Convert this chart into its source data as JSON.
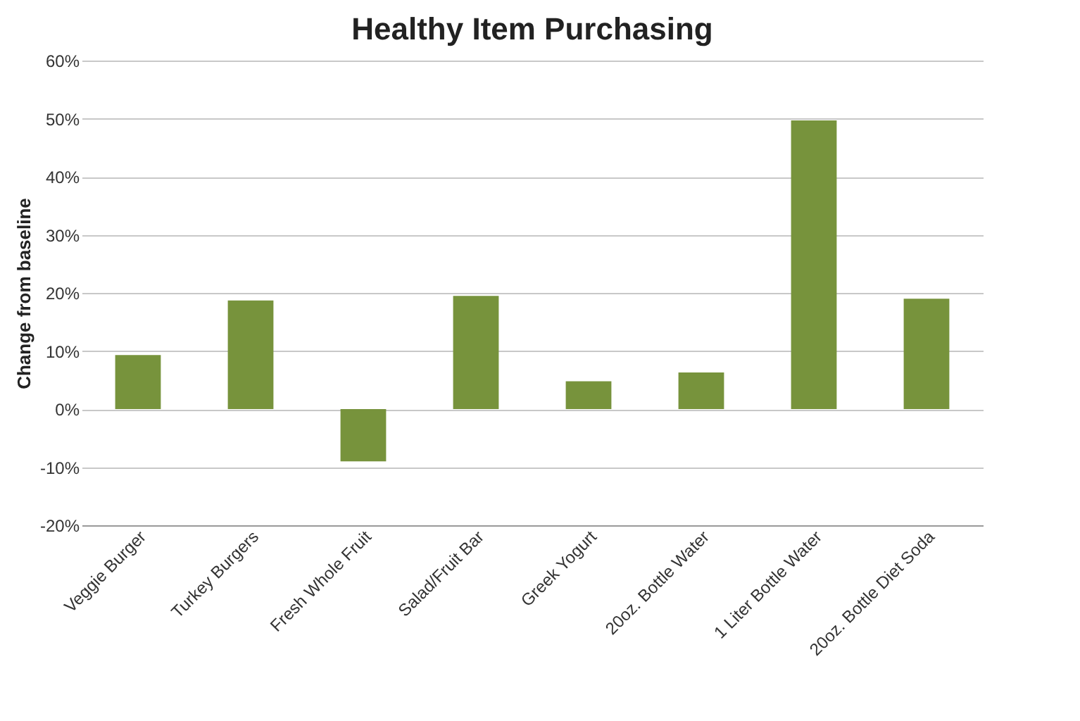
{
  "chart_data": {
    "type": "bar",
    "title": "Healthy Item Purchasing",
    "ylabel": "Change from baseline",
    "categories": [
      "Veggie Burger",
      "Turkey Burgers",
      "Fresh Whole Fruit",
      "Salad/Fruit Bar",
      "Greek Yogurt",
      "20oz. Bottle Water",
      "1 Liter Bottle Water",
      "20oz. Bottle Diet Soda"
    ],
    "values": [
      9.3,
      18.7,
      -9,
      19.5,
      4.8,
      6.3,
      49.7,
      19
    ],
    "color": "#77933c",
    "ylim": [
      -20,
      60
    ],
    "yticks": [
      {
        "value": -20,
        "label": "-20%"
      },
      {
        "value": -10,
        "label": "-10%"
      },
      {
        "value": 0,
        "label": "0%"
      },
      {
        "value": 10,
        "label": "10%"
      },
      {
        "value": 20,
        "label": "20%"
      },
      {
        "value": 30,
        "label": "30%"
      },
      {
        "value": 40,
        "label": "40%"
      },
      {
        "value": 50,
        "label": "50%"
      },
      {
        "value": 60,
        "label": "60%"
      }
    ],
    "grid": "y"
  }
}
